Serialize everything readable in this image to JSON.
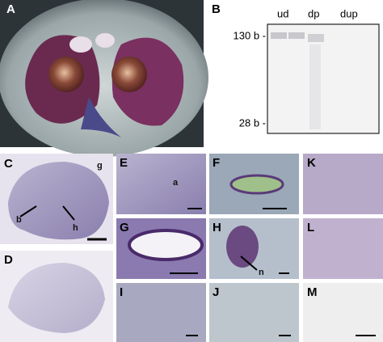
{
  "panel_labels": [
    "A",
    "B",
    "C",
    "D",
    "E",
    "F",
    "G",
    "H",
    "I",
    "J",
    "K",
    "L",
    "M"
  ],
  "blot": {
    "lanes": [
      "ud",
      "dp",
      "dup"
    ],
    "markers": [
      "130 b -",
      "28 b -"
    ]
  },
  "annotations": {
    "C": [
      "g",
      "b",
      "h"
    ],
    "E": [
      "a"
    ],
    "H": [
      "n"
    ]
  }
}
